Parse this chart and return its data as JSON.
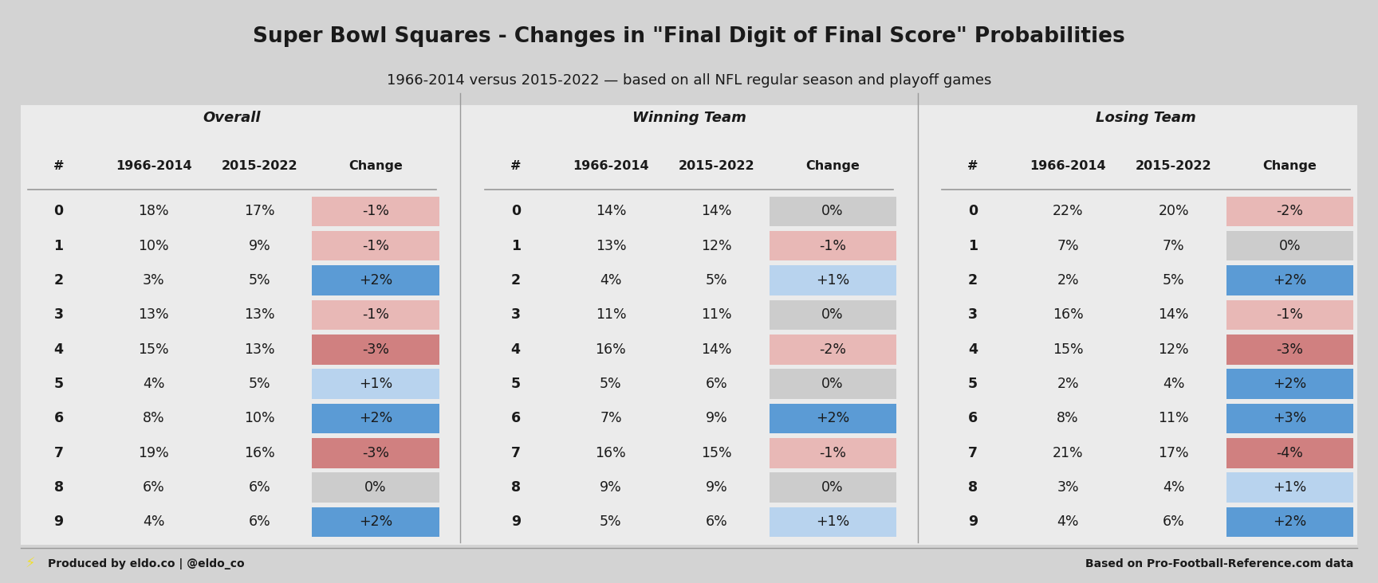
{
  "title": "Super Bowl Squares - Changes in \"Final Digit of Final Score\" Probabilities",
  "subtitle": "1966-2014 versus 2015-2022 — based on all NFL regular season and playoff games",
  "footer_left": "Produced by eldo.co | @eldo_co",
  "footer_right": "Based on Pro-Football-Reference.com data",
  "digits": [
    0,
    1,
    2,
    3,
    4,
    5,
    6,
    7,
    8,
    9
  ],
  "overall": {
    "old": [
      18,
      10,
      3,
      13,
      15,
      4,
      8,
      19,
      6,
      4
    ],
    "new": [
      17,
      9,
      5,
      13,
      13,
      5,
      10,
      16,
      6,
      6
    ],
    "change": [
      -1,
      -1,
      2,
      -1,
      -3,
      1,
      2,
      -3,
      0,
      2
    ]
  },
  "winning": {
    "old": [
      14,
      13,
      4,
      11,
      16,
      5,
      7,
      16,
      9,
      5
    ],
    "new": [
      14,
      12,
      5,
      11,
      14,
      6,
      9,
      15,
      9,
      6
    ],
    "change": [
      0,
      -1,
      1,
      0,
      -2,
      0,
      2,
      -1,
      0,
      1
    ]
  },
  "losing": {
    "old": [
      22,
      7,
      2,
      16,
      15,
      2,
      8,
      21,
      3,
      4
    ],
    "new": [
      20,
      7,
      5,
      14,
      12,
      4,
      11,
      17,
      4,
      6
    ],
    "change": [
      -2,
      0,
      2,
      -1,
      -3,
      2,
      3,
      -4,
      1,
      2
    ]
  },
  "sections": [
    "Overall",
    "Winning Team",
    "Losing Team"
  ],
  "col_labels": [
    "#",
    "1966-2014",
    "2015-2022",
    "Change"
  ],
  "bg_color": "#d3d3d3",
  "table_bg": "#ebebeb",
  "text_color": "#1a1a1a",
  "divider_color": "#999999",
  "change_colors": {
    "strong_pos": "#5b9bd5",
    "med_pos": "#7fb3de",
    "light_pos": "#b8d3ee",
    "zero": "#cccccc",
    "light_neg": "#e8b8b6",
    "med_neg": "#d08080",
    "strong_neg": "#c0504d"
  }
}
